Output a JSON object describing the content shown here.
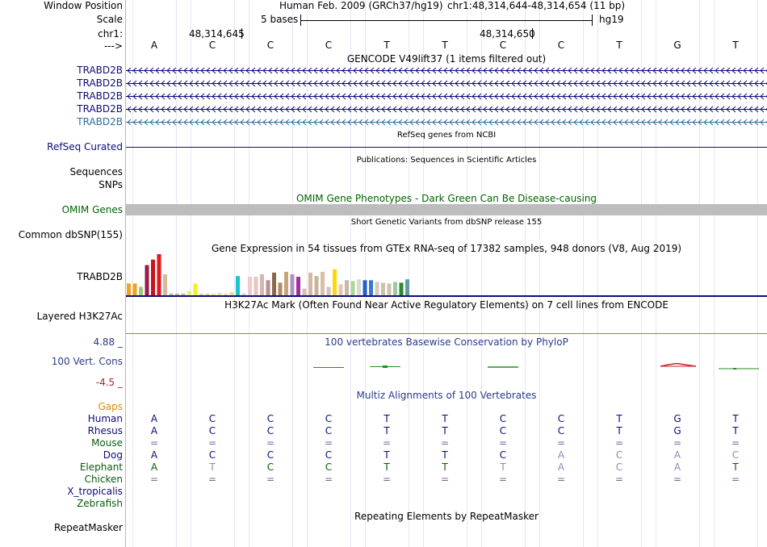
{
  "labels": {
    "window_position": "Window Position",
    "scale": "Scale",
    "chrom": "chr1:",
    "strand": "--->",
    "refseq": "RefSeq Curated",
    "sequences": "Sequences",
    "snps": "SNPs",
    "omim": "OMIM Genes",
    "dbsnp": "Common dbSNP(155)",
    "gtex_gene": "TRABD2B",
    "h3k27ac": "Layered H3K27Ac",
    "phylop_max": "4.88 _",
    "phylop_label": "100 Vert. Cons",
    "phylop_min": "-4.5 _",
    "repeatmasker": "RepeatMasker"
  },
  "header": {
    "assembly": "Human Feb. 2009 (GRCh37/hg19)",
    "position": "chr1:48,314,644-48,314,654 (11 bp)",
    "scale_text": "5 bases",
    "scale_db": "hg19",
    "coord1": "48,314,645",
    "coord2": "48,314,650"
  },
  "bases": [
    "A",
    "C",
    "C",
    "C",
    "T",
    "T",
    "C",
    "C",
    "T",
    "G",
    "T"
  ],
  "track_titles": {
    "gencode": "GENCODE V49lift37 (1 items filtered out)",
    "refseq": "RefSeq genes from NCBI",
    "pubs": "Publications: Sequences in Scientific Articles",
    "omim": "OMIM Gene Phenotypes - Dark Green Can Be Disease-causing",
    "dbsnp": "Short Genetic Variants from dbSNP release 155",
    "gtex": "Gene Expression in 54 tissues from GTEx RNA-seq of 17382 samples, 948 donors (V8, Aug 2019)",
    "h3k27ac": "H3K27Ac Mark (Often Found Near Active Regulatory Elements) on 7 cell lines from ENCODE",
    "phylop": "100 vertebrates Basewise Conservation by PhyloP",
    "multiz": "Multiz Alignments of 100 Vertebrates",
    "repeat": "Repeating Elements by RepeatMasker"
  },
  "gencode_items": [
    {
      "name": "TRABD2B",
      "color": "#0c0c78"
    },
    {
      "name": "TRABD2B",
      "color": "#0c0c78"
    },
    {
      "name": "TRABD2B",
      "color": "#0c0c78"
    },
    {
      "name": "TRABD2B",
      "color": "#0c0c78"
    },
    {
      "name": "TRABD2B",
      "color": "#2a6fa0"
    }
  ],
  "gtex_bars": [
    {
      "v": 0.28,
      "c": "#f2a21e"
    },
    {
      "v": 0.28,
      "c": "#f2a21e"
    },
    {
      "v": 0.2,
      "c": "#9acd7a"
    },
    {
      "v": 0.72,
      "c": "#9c1a4a"
    },
    {
      "v": 0.85,
      "c": "#c4161c"
    },
    {
      "v": 0.98,
      "c": "#e8161c"
    },
    {
      "v": 0.5,
      "c": "#d9b99b"
    },
    {
      "v": 0.04,
      "c": "#c8b4a0"
    },
    {
      "v": 0.04,
      "c": "#c8b4a0"
    },
    {
      "v": 0.04,
      "c": "#c8b4a0"
    },
    {
      "v": 0.1,
      "c": "#eded6a"
    },
    {
      "v": 0.28,
      "c": "#f2f21e"
    },
    {
      "v": 0.04,
      "c": "#d8d8a0"
    },
    {
      "v": 0.04,
      "c": "#d8d8a0"
    },
    {
      "v": 0.04,
      "c": "#eedd99"
    },
    {
      "v": 0.06,
      "c": "#eedd99"
    },
    {
      "v": 0.04,
      "c": "#eedd99"
    },
    {
      "v": 0.08,
      "c": "#eedd99"
    },
    {
      "v": 0.46,
      "c": "#18c8c8"
    },
    {
      "v": 0.04,
      "c": "#d0d0d0"
    },
    {
      "v": 0.44,
      "c": "#f2c8c8"
    },
    {
      "v": 0.44,
      "c": "#e6c6c0"
    },
    {
      "v": 0.5,
      "c": "#d6b6b0"
    },
    {
      "v": 0.36,
      "c": "#bc8f8f"
    },
    {
      "v": 0.54,
      "c": "#8a6a48"
    },
    {
      "v": 0.3,
      "c": "#b48a6a"
    },
    {
      "v": 0.56,
      "c": "#c8a47a"
    },
    {
      "v": 0.5,
      "c": "#b090c0"
    },
    {
      "v": 0.44,
      "c": "#a030a0"
    },
    {
      "v": 0.16,
      "c": "#d4c0b4"
    },
    {
      "v": 0.54,
      "c": "#d4b9a0"
    },
    {
      "v": 0.46,
      "c": "#c8b49c"
    },
    {
      "v": 0.56,
      "c": "#d8c0a8"
    },
    {
      "v": 0.2,
      "c": "#d4c4b4"
    },
    {
      "v": 0.62,
      "c": "#ffd60a"
    },
    {
      "v": 0.26,
      "c": "#e6c8a8"
    },
    {
      "v": 0.36,
      "c": "#c8b8a8"
    },
    {
      "v": 0.34,
      "c": "#a8d898"
    },
    {
      "v": 0.38,
      "c": "#d8d8d8"
    },
    {
      "v": 0.36,
      "c": "#2060c8"
    },
    {
      "v": 0.36,
      "c": "#3a78d0"
    },
    {
      "v": 0.32,
      "c": "#d8c8b8"
    },
    {
      "v": 0.3,
      "c": "#d0c0b0"
    },
    {
      "v": 0.28,
      "c": "#d0c0b0"
    },
    {
      "v": 0.32,
      "c": "#9acd9a"
    },
    {
      "v": 0.3,
      "c": "#2e8b2e"
    },
    {
      "v": 0.38,
      "c": "#5f9ea0"
    }
  ],
  "multiz": {
    "species": [
      {
        "name": "Gaps",
        "color": "#e08a00",
        "seq": []
      },
      {
        "name": "Human",
        "color": "#0c0c78",
        "seq": [
          "A",
          "C",
          "C",
          "C",
          "T",
          "T",
          "C",
          "C",
          "T",
          "G",
          "T"
        ]
      },
      {
        "name": "Rhesus",
        "color": "#0c0c78",
        "seq": [
          "A",
          "C",
          "C",
          "C",
          "T",
          "T",
          "C",
          "C",
          "T",
          "G",
          "T"
        ]
      },
      {
        "name": "Mouse",
        "color": "#0b5a0b",
        "seq": [
          "=",
          "=",
          "=",
          "=",
          "=",
          "=",
          "=",
          "=",
          "=",
          "=",
          "="
        ]
      },
      {
        "name": "Dog",
        "color": "#0c0c78",
        "seq": [
          "A",
          "C",
          "C",
          "C",
          "T",
          "T",
          "C",
          "A",
          "C",
          "A",
          "C"
        ]
      },
      {
        "name": "Elephant",
        "color": "#0b5a0b",
        "seq": [
          "A",
          "T",
          "C",
          "C",
          "T",
          "T",
          "T",
          "A",
          "C",
          "A",
          "T"
        ]
      },
      {
        "name": "Chicken",
        "color": "#0b5a0b",
        "seq": [
          "=",
          "=",
          "=",
          "=",
          "=",
          "=",
          "=",
          "=",
          "=",
          "=",
          "="
        ]
      },
      {
        "name": "X_tropicalis",
        "color": "#0c0c78",
        "seq": []
      },
      {
        "name": "Zebrafish",
        "color": "#0b5a0b",
        "seq": []
      }
    ],
    "dim_map": {
      "Dog": [
        false,
        false,
        false,
        false,
        false,
        false,
        false,
        true,
        true,
        true,
        true
      ],
      "Elephant": [
        false,
        true,
        false,
        false,
        false,
        false,
        true,
        true,
        true,
        true,
        false
      ]
    }
  },
  "colors": {
    "omim_bar": "#bdbdbd",
    "refseq_line": "#0c0c78",
    "gtex_base": "#0c0c78",
    "h3k27ac_line": "#5aa05a",
    "phylop_pos": "#2a8a2a",
    "phylop_neg": "#d0202a"
  }
}
